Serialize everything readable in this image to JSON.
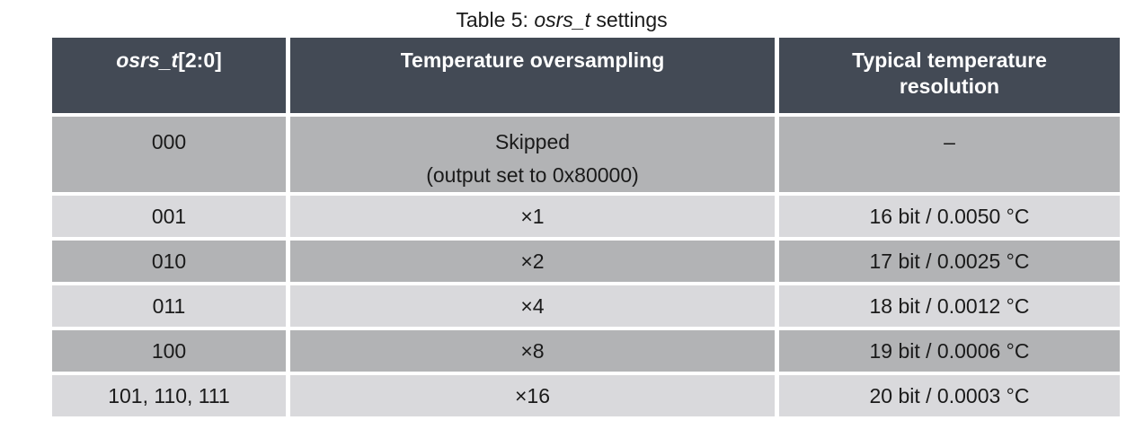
{
  "caption": {
    "prefix": "Table 5: ",
    "italic": "osrs_t",
    "suffix": " settings"
  },
  "headers": {
    "col1_italic": "osrs_t",
    "col1_rest": "[2:0]",
    "col2": "Temperature oversampling",
    "col3_line1": "Typical temperature",
    "col3_line2": "resolution"
  },
  "rows": [
    {
      "code": "000",
      "oversampling_line1": "Skipped",
      "oversampling_line2": "(output set to 0x80000)",
      "resolution": "–"
    },
    {
      "code": "001",
      "oversampling": "×1",
      "resolution": "16 bit / 0.0050 °C"
    },
    {
      "code": "010",
      "oversampling": "×2",
      "resolution": "17 bit / 0.0025 °C"
    },
    {
      "code": "011",
      "oversampling": "×4",
      "resolution": "18 bit / 0.0012 °C"
    },
    {
      "code": "100",
      "oversampling": "×8",
      "resolution": "19 bit / 0.0006 °C"
    },
    {
      "code": "101, 110, 111",
      "oversampling": "×16",
      "resolution": "20 bit / 0.0003 °C"
    }
  ]
}
